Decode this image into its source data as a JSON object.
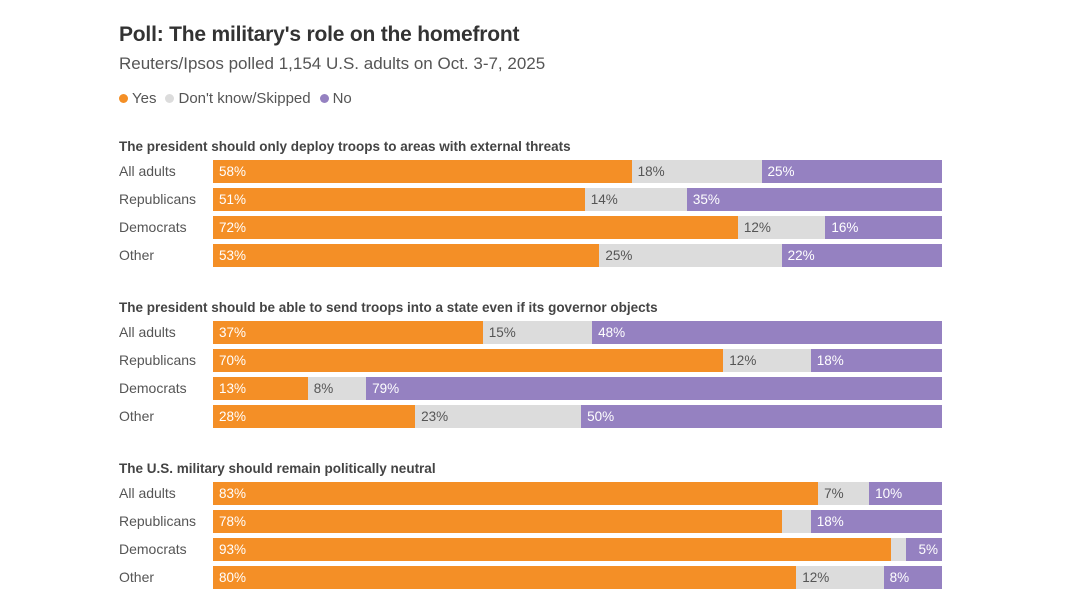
{
  "header": {
    "title": "Poll: The military's role on the homefront",
    "subtitle": "Reuters/Ipsos polled 1,154 U.S. adults on Oct. 3-7, 2025"
  },
  "legend": [
    {
      "label": "Yes",
      "color": "#f48f26"
    },
    {
      "label": "Don't know/Skipped",
      "color": "#dcdcdc"
    },
    {
      "label": "No",
      "color": "#9581c1"
    }
  ],
  "chart_data": [
    {
      "type": "bar",
      "stacked": true,
      "orientation": "horizontal",
      "title": "The president should only deploy troops to areas with external threats",
      "categories": [
        "All adults",
        "Republicans",
        "Democrats",
        "Other"
      ],
      "series": [
        {
          "name": "Yes",
          "values": [
            58,
            51,
            72,
            53
          ],
          "labels": [
            "58%",
            "51%",
            "72%",
            "53%"
          ]
        },
        {
          "name": "Don't know/Skipped",
          "values": [
            18,
            14,
            12,
            25
          ],
          "labels": [
            "18%",
            "14%",
            "12%",
            "25%"
          ]
        },
        {
          "name": "No",
          "values": [
            25,
            35,
            16,
            22
          ],
          "labels": [
            "25%",
            "35%",
            "16%",
            "22%"
          ]
        }
      ],
      "xlim": [
        0,
        100
      ]
    },
    {
      "type": "bar",
      "stacked": true,
      "orientation": "horizontal",
      "title": "The president should be able to send troops into a state even if its governor objects",
      "categories": [
        "All adults",
        "Republicans",
        "Democrats",
        "Other"
      ],
      "series": [
        {
          "name": "Yes",
          "values": [
            37,
            70,
            13,
            28
          ],
          "labels": [
            "37%",
            "70%",
            "13%",
            "28%"
          ]
        },
        {
          "name": "Don't know/Skipped",
          "values": [
            15,
            12,
            8,
            23
          ],
          "labels": [
            "15%",
            "12%",
            "8%",
            "23%"
          ]
        },
        {
          "name": "No",
          "values": [
            48,
            18,
            79,
            50
          ],
          "labels": [
            "48%",
            "18%",
            "79%",
            "50%"
          ]
        }
      ],
      "xlim": [
        0,
        100
      ]
    },
    {
      "type": "bar",
      "stacked": true,
      "orientation": "horizontal",
      "title": "The U.S. military should remain politically neutral",
      "categories": [
        "All adults",
        "Republicans",
        "Democrats",
        "Other"
      ],
      "series": [
        {
          "name": "Yes",
          "values": [
            83,
            78,
            93,
            80
          ],
          "labels": [
            "83%",
            "78%",
            "93%",
            "80%"
          ]
        },
        {
          "name": "Don't know/Skipped",
          "values": [
            7,
            4,
            2,
            12
          ],
          "labels": [
            "7%",
            "",
            "",
            "12%"
          ]
        },
        {
          "name": "No",
          "values": [
            10,
            18,
            5,
            8
          ],
          "labels": [
            "10%",
            "18%",
            "5%",
            "8%"
          ]
        }
      ],
      "xlim": [
        0,
        100
      ]
    }
  ]
}
